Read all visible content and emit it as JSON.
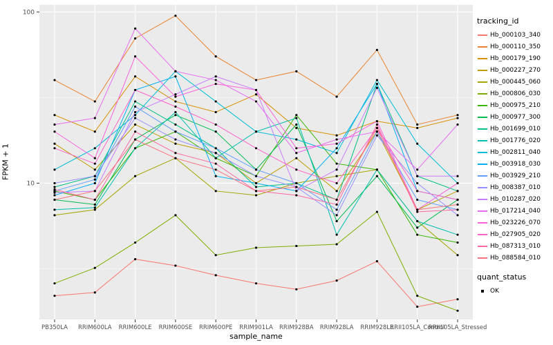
{
  "figure": {
    "background": "#FFFFFF",
    "panel_background": "#EBEBEB",
    "grid_color": "#FFFFFF",
    "point_color": "#000000",
    "axis_text_color": "#4D4D4D",
    "tick_color": "#333333"
  },
  "axes": {
    "ylabel": "FPKM + 1",
    "xlabel": "sample_name"
  },
  "legend": {
    "tracking_title": "tracking_id",
    "quant_title": "quant_status",
    "quant_items": [
      {
        "label": "OK"
      }
    ]
  },
  "chart_data": {
    "type": "line",
    "title": "",
    "xlabel": "sample_name",
    "ylabel": "FPKM + 1",
    "yscale": "log10",
    "ylim": [
      1.6,
      110
    ],
    "yticks": [
      10,
      100
    ],
    "ytick_labels": [
      "10",
      "100"
    ],
    "y_minor_gridlines": [
      3.162,
      31.62
    ],
    "grid": true,
    "legend_position": "right",
    "x_categories": [
      "PB350LA",
      "RRIM600LA",
      "RRIM600LE",
      "RRIM600SE",
      "RRIM600PE",
      "RRIM901LA",
      "RRIM928BA",
      "RRIM928LA",
      "RRIM928LE",
      "RRII105LA_Control",
      "RRII105LA_Stressed"
    ],
    "series": [
      {
        "name": "Hb_000103_340",
        "color": "#F8766D",
        "values": [
          2.2,
          2.3,
          3.6,
          3.3,
          2.9,
          2.6,
          2.4,
          2.7,
          3.5,
          1.9,
          2.1
        ]
      },
      {
        "name": "Hb_000110_350",
        "color": "#EA8331",
        "values": [
          40,
          30,
          70,
          95,
          55,
          40,
          45,
          32,
          60,
          22,
          25
        ]
      },
      {
        "name": "Hb_000179_190",
        "color": "#D89000",
        "values": [
          25,
          20,
          42,
          30,
          26,
          33,
          21,
          19,
          23,
          21,
          24
        ]
      },
      {
        "name": "Hb_000227_270",
        "color": "#C09B00",
        "values": [
          17,
          12,
          22,
          17,
          15,
          10,
          14,
          9,
          20,
          7,
          9
        ]
      },
      {
        "name": "Hb_000445_060",
        "color": "#A3A500",
        "values": [
          6.5,
          7,
          11,
          14,
          9,
          8.5,
          10,
          11,
          12,
          6,
          3.8
        ]
      },
      {
        "name": "Hb_000806_030",
        "color": "#7CAE00",
        "values": [
          2.6,
          3.2,
          4.5,
          6.5,
          3.8,
          4.2,
          4.3,
          4.4,
          6.8,
          2.2,
          1.8
        ]
      },
      {
        "name": "Hb_000975_210",
        "color": "#39B600",
        "values": [
          9,
          8,
          16,
          20,
          14,
          11,
          25,
          13,
          12,
          5,
          4.5
        ]
      },
      {
        "name": "Hb_000977_300",
        "color": "#00BB4E",
        "values": [
          8,
          7.5,
          18,
          25,
          20,
          12,
          22,
          6,
          11,
          5.5,
          8
        ]
      },
      {
        "name": "Hb_001699_010",
        "color": "#00C087",
        "values": [
          9.5,
          11,
          30,
          22,
          16,
          9.5,
          10,
          8,
          38,
          11,
          9
        ]
      },
      {
        "name": "Hb_001776_020",
        "color": "#00C0AF",
        "values": [
          7,
          7.2,
          16,
          26,
          14,
          20,
          24,
          5,
          12,
          6,
          5
        ]
      },
      {
        "name": "Hb_002811_040",
        "color": "#00BCD8",
        "values": [
          12,
          16,
          25,
          45,
          30,
          20,
          18,
          15,
          40,
          17,
          10
        ]
      },
      {
        "name": "Hb_003918_030",
        "color": "#00B0F6",
        "values": [
          8.5,
          10,
          35,
          42,
          11,
          10,
          9,
          16,
          38,
          9,
          8
        ]
      },
      {
        "name": "Hb_003929_210",
        "color": "#619CFF",
        "values": [
          9,
          10.5,
          28,
          20,
          16,
          12,
          10,
          7,
          20,
          8,
          7
        ]
      },
      {
        "name": "Hb_008387_010",
        "color": "#9590FF",
        "values": [
          10,
          11,
          24,
          18,
          15,
          11,
          9.5,
          6.5,
          19,
          10,
          6.5
        ]
      },
      {
        "name": "Hb_010287_020",
        "color": "#C77CFF",
        "values": [
          8.8,
          9,
          26,
          33,
          42,
          35,
          9,
          12,
          36,
          11,
          11
        ]
      },
      {
        "name": "Hb_017214_040",
        "color": "#E76BF3",
        "values": [
          22,
          24,
          80,
          45,
          40,
          30,
          15,
          18,
          20,
          12,
          22
        ]
      },
      {
        "name": "Hb_023226_070",
        "color": "#FA62DB",
        "values": [
          20,
          14,
          55,
          32,
          38,
          35,
          16,
          17,
          23,
          7,
          10
        ]
      },
      {
        "name": "Hb_027905_020",
        "color": "#FF61C9",
        "values": [
          16,
          13,
          35,
          28,
          22,
          16,
          12,
          10,
          21,
          9,
          8
        ]
      },
      {
        "name": "Hb_087313_010",
        "color": "#FF67A4",
        "values": [
          9.2,
          8,
          20,
          15,
          13,
          9,
          8.5,
          7.5,
          22,
          6.8,
          7
        ]
      },
      {
        "name": "Hb_088584_010",
        "color": "#FC717F",
        "values": [
          8,
          9,
          18,
          14,
          12,
          9,
          9.5,
          8,
          21,
          7,
          7.5
        ]
      }
    ]
  }
}
